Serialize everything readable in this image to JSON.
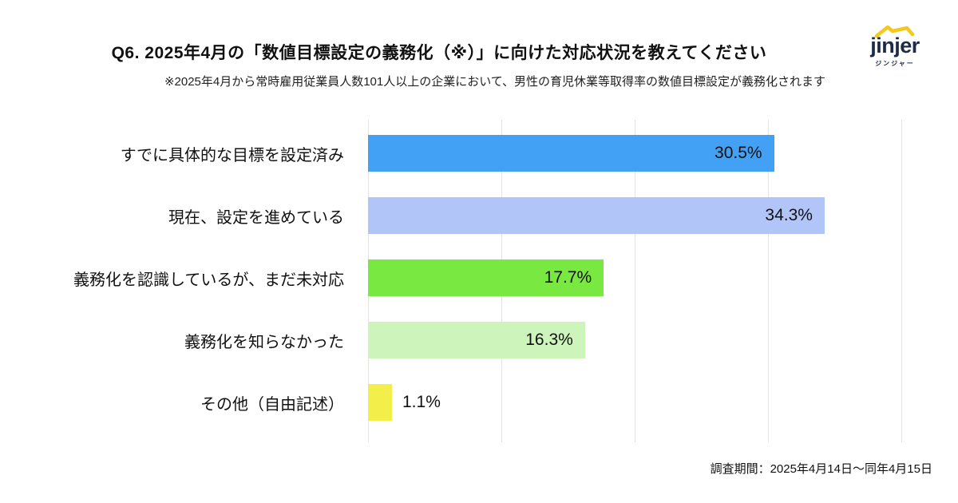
{
  "header": {
    "title": "Q6. 2025年4月の「数値目標設定の義務化（※）」に向けた対応状況を教えてください",
    "subtitle": "※2025年4月から常時雇用従業員人数101人以上の企業において、男性の育児休業等取得率の数値目標設定が義務化されます"
  },
  "logo": {
    "brand": "jinjer",
    "kana": "ジンジャー",
    "text_color": "#1d2b49",
    "accent_color": "#f2c91e"
  },
  "footer": {
    "survey_period": "調査期間：2025年4月14日〜同年4月15日"
  },
  "chart_data": {
    "type": "bar",
    "orientation": "horizontal",
    "title": "",
    "xlabel": "",
    "ylabel": "",
    "xlim": [
      0,
      40
    ],
    "grid": true,
    "gridline_positions_pct": [
      0,
      10,
      20,
      30,
      40
    ],
    "categories": [
      "すでに具体的な目標を設定済み",
      "現在、設定を進めている",
      "義務化を認識しているが、まだ未対応",
      "義務化を知らなかった",
      "その他（自由記述）"
    ],
    "values": [
      30.5,
      34.3,
      17.7,
      16.3,
      1.1
    ],
    "value_labels": [
      "30.5%",
      "34.3%",
      "17.7%",
      "16.3%",
      "1.1%"
    ],
    "bar_colors": [
      "#42a1f5",
      "#b1c5f9",
      "#79e840",
      "#cdf4bb",
      "#f4ee4b"
    ],
    "gridline_color": "#e3e3e3",
    "value_inside_threshold_pct": 5
  }
}
